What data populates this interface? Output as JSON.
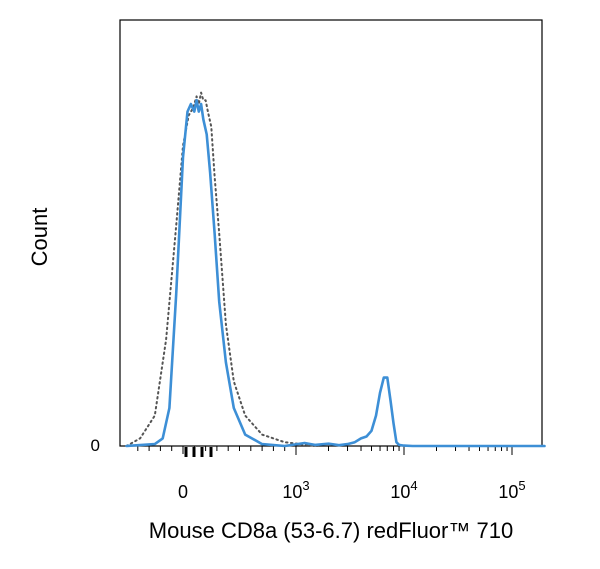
{
  "chart_data": {
    "type": "line",
    "title": "",
    "xlabel": "Mouse CD8a (53-6.7) redFluor™ 710",
    "ylabel": "Count",
    "x_scale": "biexponential",
    "xlim": [
      -500,
      200000
    ],
    "ylim": [
      0,
      100
    ],
    "x_ticks": [
      {
        "base": "0",
        "exp": ""
      },
      {
        "base": "10",
        "exp": "3"
      },
      {
        "base": "10",
        "exp": "4"
      },
      {
        "base": "10",
        "exp": "5"
      }
    ],
    "y_ticks": [
      "0"
    ],
    "grid": false,
    "legend": "none",
    "series": [
      {
        "style": "dotted",
        "color": "#555555",
        "x": [
          -500,
          -380,
          -250,
          -150,
          -60,
          0,
          50,
          90,
          120,
          140,
          160,
          180,
          200,
          220,
          250,
          280,
          320,
          380,
          450,
          550,
          700,
          900,
          1100,
          1300,
          1600
        ],
        "y": [
          0,
          2,
          8,
          28,
          58,
          79,
          87,
          89,
          92,
          90,
          93,
          91,
          91,
          88,
          84,
          71,
          56,
          32,
          17,
          8,
          3,
          1,
          0.5,
          0.2,
          0
        ]
      },
      {
        "style": "solid",
        "color": "#3d8fd6",
        "x": [
          -500,
          -250,
          -180,
          -120,
          -60,
          0,
          40,
          70,
          100,
          120,
          140,
          160,
          180,
          210,
          240,
          280,
          320,
          380,
          450,
          550,
          700,
          900,
          1200,
          1500,
          2000,
          2500,
          3000,
          3500,
          4000,
          4500,
          5000,
          5500,
          6000,
          6500,
          7000,
          7500,
          8000,
          8500,
          9000,
          10000,
          12000,
          20000,
          50000,
          200000
        ],
        "y": [
          0,
          0.5,
          2,
          10,
          40,
          76,
          88,
          90,
          88,
          91,
          88,
          90,
          86,
          82,
          72,
          56,
          38,
          22,
          10,
          3,
          0.5,
          0,
          0.8,
          0.3,
          0.6,
          0.2,
          0.5,
          1,
          2,
          2.5,
          4,
          8,
          14,
          18,
          18,
          12,
          6,
          1,
          0.3,
          0.1,
          0,
          0,
          0,
          0
        ]
      }
    ]
  }
}
